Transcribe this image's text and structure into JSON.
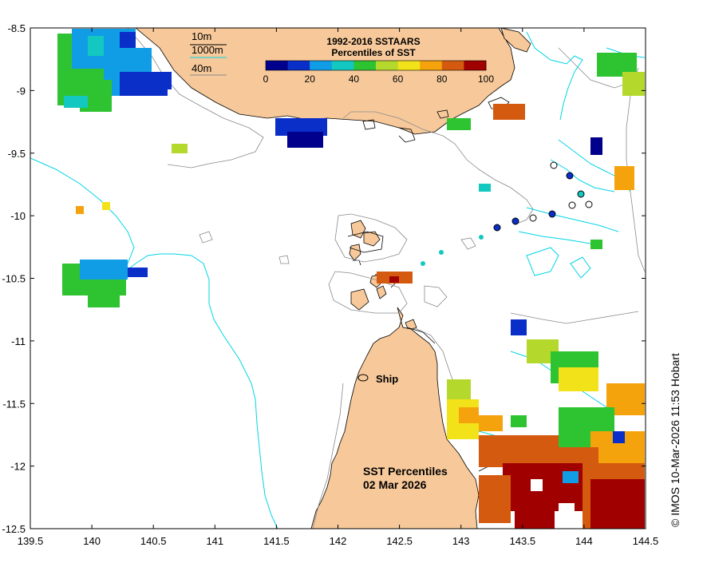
{
  "legend": {
    "title": "1992-2016 SSTAARS",
    "subtitle": "Percentiles of SST",
    "ticks": [
      "0",
      "20",
      "40",
      "60",
      "80",
      "100"
    ],
    "colors": [
      "#00008c",
      "#0a2ec8",
      "#119de6",
      "#12c8c0",
      "#2ec330",
      "#b4d82c",
      "#f2e21a",
      "#f5a30c",
      "#d45a10",
      "#a00000"
    ]
  },
  "depth_legend": {
    "d1": "10m",
    "d2": "1000m",
    "d3": "40m"
  },
  "map_title": {
    "line1": "SST Percentiles",
    "line2": "02 Mar 2026"
  },
  "ship_label": "Ship",
  "credit": "© IMOS 10-Mar-2026 11:53 Hobart",
  "axes": {
    "x_ticks": [
      "139.5",
      "140",
      "140.5",
      "141",
      "141.5",
      "142",
      "142.5",
      "143",
      "143.5",
      "144",
      "144.5"
    ],
    "y_ticks": [
      "-8.5",
      "-9",
      "-9.5",
      "-10",
      "-10.5",
      "-11",
      "-11.5",
      "-12",
      "-12.5"
    ],
    "x_range": [
      139.5,
      144.5
    ],
    "y_range": [
      -12.5,
      -8.5
    ]
  },
  "colors": {
    "land": "#f7c99a",
    "isobath_10m": "#000000",
    "isobath_1000m": "#00d4e6",
    "isobath_40m": "#8a8a8a"
  }
}
